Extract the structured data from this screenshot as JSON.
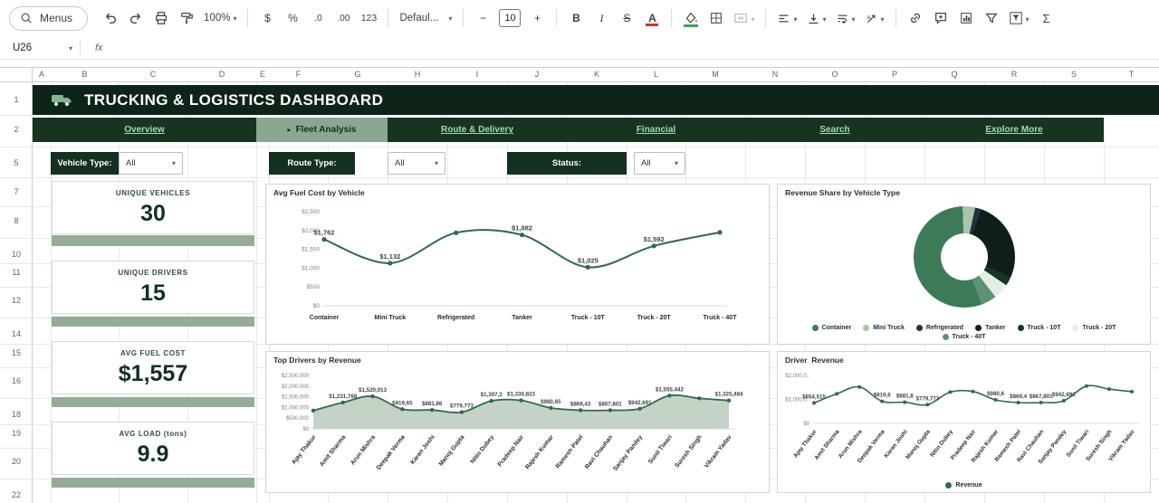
{
  "toolbar": {
    "menus_label": "Menus",
    "zoom": "100%",
    "currency": "$",
    "percent": "%",
    "decrease_decimal": ".0",
    "increase_decimal": ".00",
    "number_format": "123",
    "font_name": "Defaul...",
    "font_size": "10",
    "minus": "−",
    "plus": "+",
    "bold": "B",
    "italic": "I",
    "strikethrough": "S",
    "text_color": "A",
    "sigma": "Σ"
  },
  "formula_bar": {
    "cell_ref": "U26",
    "fx": "fx"
  },
  "grid": {
    "columns": [
      "A",
      "B",
      "C",
      "D",
      "E",
      "F",
      "G",
      "H",
      "I",
      "J",
      "K",
      "L",
      "M",
      "N",
      "O",
      "P",
      "Q",
      "R",
      "S",
      "T"
    ],
    "rows": [
      "1",
      "2",
      "5",
      "7",
      "8",
      "10",
      "11",
      "12",
      "14",
      "15",
      "16",
      "18",
      "19",
      "20",
      "22"
    ]
  },
  "dashboard": {
    "title": "TRUCKING & LOGISTICS DASHBOARD",
    "active_tab_marker": "▸",
    "tabs": [
      {
        "label": "Overview",
        "active": false
      },
      {
        "label": "Fleet Analysis",
        "active": true
      },
      {
        "label": "Route & Delivery",
        "active": false
      },
      {
        "label": "Financial",
        "active": false
      },
      {
        "label": "Search",
        "active": false
      },
      {
        "label": "Explore More",
        "active": false
      }
    ],
    "filters": [
      {
        "label": "Vehicle Type:",
        "value": "All"
      },
      {
        "label": "Route Type:",
        "value": "All"
      },
      {
        "label": "Status:",
        "value": "All"
      }
    ],
    "kpis": [
      {
        "label": "UNIQUE VEHICLES",
        "value": "30"
      },
      {
        "label": "UNIQUE DRIVERS",
        "value": "15"
      },
      {
        "label": "AVG FUEL COST",
        "value": "$1,557"
      },
      {
        "label": "AVG LOAD (tons)",
        "value": "9.9"
      }
    ]
  },
  "colors": {
    "header_green": "#0f2418",
    "nav_green": "#173421",
    "active_tab_sage": "#8aa88f",
    "link_mint": "#a5d8b0",
    "strip_sage": "#95ac97",
    "line_green": "#2f6a4e",
    "area_fill": "#c5d3c6"
  },
  "chart_data": [
    {
      "type": "line",
      "title": "Avg Fuel Cost by Vehicle",
      "categories": [
        "Container",
        "Mini Truck",
        "Refrigerated",
        "Tanker",
        "Truck - 10T",
        "Truck - 20T",
        "Truck - 40T"
      ],
      "values": [
        1762,
        1132,
        1940,
        1882,
        1025,
        1592,
        1950
      ],
      "point_labels": [
        "$1,762",
        "$1,132",
        "",
        "$1,882",
        "$1,025",
        "$1,592",
        ""
      ],
      "y_ticks": [
        "$0",
        "$500",
        "$1,000",
        "$1,500",
        "$2,000",
        "$2,500"
      ],
      "ylim": [
        0,
        2500
      ],
      "line_color": "#2f6a4e",
      "grid": false,
      "legend_position": "none"
    },
    {
      "type": "pie",
      "donut": true,
      "title": "Revenue Share by Vehicle Type",
      "categories": [
        "Container",
        "Mini Truck",
        "Refrigerated",
        "Tanker",
        "Truck - 10T",
        "Truck - 20T",
        "Truck - 40T"
      ],
      "values": [
        55,
        4,
        2,
        26,
        3,
        5,
        5
      ],
      "colors": [
        "#3c7a58",
        "#a9c6ab",
        "#22333d",
        "#0e1f17",
        "#16352a",
        "#e3efe3",
        "#5d9374"
      ],
      "start_angle": 160,
      "legend_position": "bottom"
    },
    {
      "type": "area",
      "title": "Top Drivers by Revenue",
      "categories": [
        "Ajay Thakur",
        "Amit Sharma",
        "Arun Mishra",
        "Deepak Verma",
        "Karan Joshi",
        "Manoj Gupta",
        "Nitin Dubey",
        "Pradeep Nair",
        "Rajesh Kumar",
        "Ramesh Patel",
        "Ravi Chauhan",
        "Sanjay Pandey",
        "Sunil Tiwari",
        "Suresh Singh",
        "Vikram Yadav"
      ],
      "values": [
        854515,
        1231768,
        1520013,
        919656,
        881864,
        779773,
        1307352,
        1330823,
        980657,
        869434,
        867801,
        942691,
        1555442,
        1430000,
        1325484
      ],
      "point_labels": [
        "",
        "$1,231,768",
        "$1,520,013",
        "$919,65",
        "$881,86",
        "$779,773",
        "$1,307,3",
        "$1,330,823",
        "$980,65",
        "$869,43",
        "$867,801",
        "$942,691",
        "$1,555,442",
        "",
        "$1,325,484"
      ],
      "y_ticks": [
        "$0",
        "$500,000",
        "$1,000,000",
        "$1,500,000",
        "$2,000,000",
        "$2,500,000"
      ],
      "ylim": [
        0,
        2500000
      ],
      "line_color": "#2f6a4e",
      "area_fill": "#c5d3c6",
      "legend_position": "none"
    },
    {
      "type": "line",
      "title": "Driver  Revenue",
      "categories": [
        "Ajay Thakur",
        "Amit Sharma",
        "Arun Mishra",
        "Deepak Verma",
        "Karan Joshi",
        "Manoj Gupta",
        "Nitin Dubey",
        "Pradeep Nair",
        "Rajesh Kumar",
        "Ramesh Patel",
        "Ravi Chauhan",
        "Sanjay Pandey",
        "Sunil Tiwari",
        "Suresh Singh",
        "Vikram Yadav"
      ],
      "values": [
        854515,
        1231768,
        1520013,
        919656,
        881864,
        779773,
        1307352,
        1330823,
        980657,
        869434,
        867801,
        942691,
        1555442,
        1430000,
        1325484
      ],
      "point_labels": [
        "$854,515",
        "",
        "",
        "$919,6",
        "$881,8",
        "$779,773",
        "",
        "",
        "$980,6",
        "$869,4",
        "$867,801",
        "$942,691",
        "",
        "",
        ""
      ],
      "y_ticks": [
        "$0",
        "$1,000,0..",
        "$2,000,0.."
      ],
      "ylim": [
        0,
        2000000
      ],
      "line_color": "#2f6a4e",
      "legend_position": "bottom",
      "legend": [
        {
          "label": "Revenue",
          "color": "#2f6a4e"
        }
      ]
    }
  ]
}
